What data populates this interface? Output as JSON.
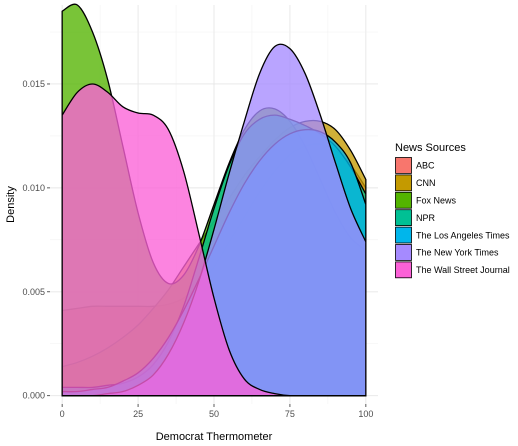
{
  "chart_data": {
    "type": "area",
    "xlabel": "Democrat Thermometer",
    "ylabel": "Density",
    "xlim": [
      -4,
      104
    ],
    "ylim": [
      -0.0004,
      0.0188
    ],
    "x_ticks": [
      0,
      25,
      50,
      75,
      100
    ],
    "y_ticks": [
      0.0,
      0.005,
      0.01,
      0.015
    ],
    "x_tick_labels": [
      "0",
      "25",
      "50",
      "75",
      "100"
    ],
    "y_tick_labels": [
      "0.000",
      "0.005",
      "0.010",
      "0.015"
    ],
    "grid": true,
    "legend": {
      "title": "News Sources",
      "position": "right"
    },
    "x": [
      0,
      5,
      10,
      15,
      20,
      25,
      30,
      35,
      40,
      45,
      50,
      55,
      60,
      65,
      70,
      75,
      80,
      85,
      90,
      95,
      100
    ],
    "series": [
      {
        "name": "ABC",
        "color": "#F8766D",
        "values": [
          0.0041,
          0.0042,
          0.0043,
          0.0043,
          0.0043,
          0.0043,
          0.0043,
          0.0044,
          0.0047,
          0.0053,
          0.0062,
          0.0074,
          0.0086,
          0.0098,
          0.0108,
          0.0116,
          0.012,
          0.0121,
          0.0118,
          0.0111,
          0.01
        ]
      },
      {
        "name": "CNN",
        "color": "#C49A00",
        "values": [
          0.0014,
          0.0016,
          0.0019,
          0.0023,
          0.0028,
          0.0034,
          0.0042,
          0.0051,
          0.0062,
          0.0073,
          0.0084,
          0.0095,
          0.0106,
          0.0115,
          0.0123,
          0.0129,
          0.0132,
          0.0132,
          0.0128,
          0.0118,
          0.0104
        ]
      },
      {
        "name": "Fox News",
        "color": "#53B400",
        "values": [
          0.0185,
          0.0188,
          0.0175,
          0.0152,
          0.012,
          0.0088,
          0.0064,
          0.0054,
          0.0058,
          0.0072,
          0.0092,
          0.0112,
          0.0128,
          0.0137,
          0.0138,
          0.0132,
          0.012,
          0.0104,
          0.0088,
          0.0076,
          0.007
        ]
      },
      {
        "name": "NPR",
        "color": "#00C094",
        "values": [
          0.0004,
          0.0004,
          0.0004,
          0.0005,
          0.0006,
          0.0009,
          0.0015,
          0.0026,
          0.0043,
          0.0066,
          0.009,
          0.0111,
          0.0126,
          0.0133,
          0.0135,
          0.0133,
          0.013,
          0.0126,
          0.012,
          0.011,
          0.0097
        ]
      },
      {
        "name": "The Los Angeles Times",
        "color": "#00B6EB",
        "values": [
          0.0002,
          0.0002,
          0.0003,
          0.0004,
          0.0007,
          0.0011,
          0.0018,
          0.0028,
          0.0041,
          0.0056,
          0.0072,
          0.0088,
          0.0102,
          0.0113,
          0.0121,
          0.0126,
          0.0128,
          0.0127,
          0.0122,
          0.0112,
          0.0092
        ]
      },
      {
        "name": "The New York Times",
        "color": "#A58AFF",
        "values": [
          0.0,
          0.0,
          0.0,
          0.0001,
          0.0002,
          0.0005,
          0.001,
          0.002,
          0.0035,
          0.0055,
          0.008,
          0.0107,
          0.0132,
          0.0155,
          0.0168,
          0.0167,
          0.0155,
          0.0135,
          0.0112,
          0.009,
          0.0074
        ]
      },
      {
        "name": "The Wall Street Journal",
        "color": "#FB61D7",
        "values": [
          0.0135,
          0.0146,
          0.015,
          0.0146,
          0.0139,
          0.0136,
          0.0135,
          0.0128,
          0.0108,
          0.0078,
          0.0047,
          0.0022,
          0.0008,
          0.0003,
          0.0001,
          0.0,
          0.0,
          0.0,
          0.0,
          0.0,
          0.0
        ]
      }
    ]
  }
}
